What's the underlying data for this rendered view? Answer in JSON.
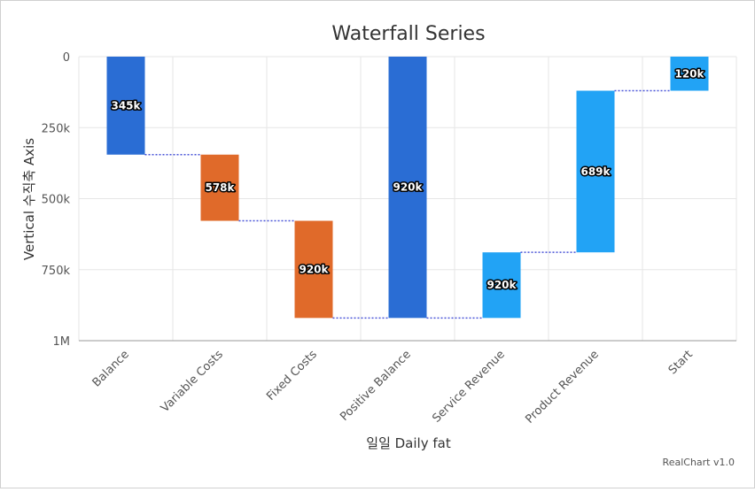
{
  "chart_data": {
    "type": "waterfall",
    "title": "Waterfall Series",
    "xlabel": "일일 Daily fat",
    "ylabel": "Vertical 수직축 Axis",
    "y_reversed": true,
    "ylim": [
      0,
      1000000
    ],
    "yticks": [
      {
        "value": 0,
        "label": "0"
      },
      {
        "value": 250000,
        "label": "250k"
      },
      {
        "value": 500000,
        "label": "500k"
      },
      {
        "value": 750000,
        "label": "750k"
      },
      {
        "value": 1000000,
        "label": "1M"
      }
    ],
    "grid": true,
    "categories": [
      "Balance",
      "Variable Costs",
      "Fixed Costs",
      "Positive Balance",
      "Service Revenue",
      "Product Revenue",
      "Start"
    ],
    "bars": [
      {
        "category": "Balance",
        "from": 0,
        "to": 345000,
        "label": "345k",
        "color": "#2a6dd4"
      },
      {
        "category": "Variable Costs",
        "from": 345000,
        "to": 578000,
        "label": "578k",
        "color": "#e06a2a"
      },
      {
        "category": "Fixed Costs",
        "from": 578000,
        "to": 920000,
        "label": "920k",
        "color": "#e06a2a"
      },
      {
        "category": "Positive Balance",
        "from": 0,
        "to": 920000,
        "label": "920k",
        "color": "#2a6dd4"
      },
      {
        "category": "Service Revenue",
        "from": 920000,
        "to": 689000,
        "label": "920k",
        "color": "#22a3f5"
      },
      {
        "category": "Product Revenue",
        "from": 689000,
        "to": 120000,
        "label": "689k",
        "color": "#22a3f5"
      },
      {
        "category": "Start",
        "from": 120000,
        "to": 0,
        "label": "120k",
        "color": "#22a3f5"
      }
    ],
    "connector_color": "#4a55d8"
  },
  "credit": "RealChart v1.0"
}
